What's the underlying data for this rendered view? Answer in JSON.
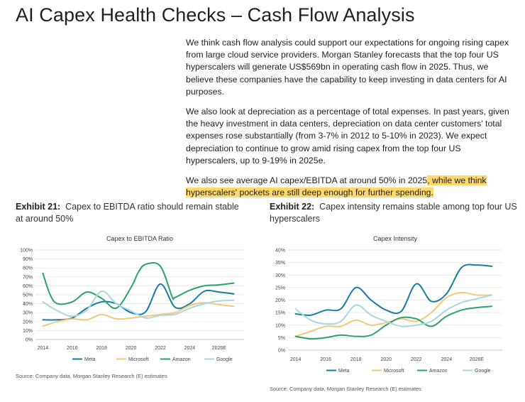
{
  "page": {
    "title": "AI Capex Health Checks – Cash Flow Analysis",
    "paragraphs": [
      "We think cash flow analysis could support our expectations for ongoing rising capex from large cloud service providers. Morgan Stanley forecasts that the top four US hyperscalers will generate US$569bn in operating cash flow in 2025. Thus, we believe these companies have the capability to keep investing in data centers for AI purposes.",
      "We also look at depreciation as a percentage of total expenses. In past years, given the heavy investment in data centers, depreciation on data center customers' total expenses rose substantially (from 3-7% in 2012 to 5-10% in 2023). We expect depreciation to continue to grow amid rising capex from the top four US hyperscalers, up to 9-19% in 2025e."
    ],
    "paragraph3_plain": "We also see average AI capex/EBITDA at around 50% in 2025",
    "paragraph3_highlight": ", while we think hyperscalers' pockets are still deep enough for further spending.",
    "highlight_color": "#fdd96b"
  },
  "exhibits": [
    {
      "label": "Exhibit 21:",
      "caption": "Capex to EBITDA ratio should remain stable at around 50%",
      "source": "Source: Company data, Morgan Stanley Research (E) estimates"
    },
    {
      "label": "Exhibit 22:",
      "caption": "Capex intensity remains stable among top four US hyperscalers",
      "source": "Source: Company data, Morgan Stanley Research (E) estimates"
    }
  ],
  "chart_data": [
    {
      "type": "line",
      "title": "Capex to EBITDA Ratio",
      "xlabel": "",
      "ylabel": "",
      "x_range": [
        2013.5,
        2027.7
      ],
      "x_ticks": [
        "2014",
        "2016",
        "2018",
        "2020",
        "2022",
        "2024",
        "2026E"
      ],
      "x_tick_values": [
        2014,
        2016,
        2018,
        2020,
        2022,
        2024,
        2026
      ],
      "ylim": [
        0,
        100
      ],
      "y_ticks": [
        "0%",
        "10%",
        "20%",
        "30%",
        "40%",
        "50%",
        "60%",
        "70%",
        "80%",
        "90%",
        "100%"
      ],
      "grid": true,
      "legend": "bottom",
      "series": [
        {
          "name": "Meta",
          "color": "#1a7ba4",
          "points": [
            [
              2014,
              22
            ],
            [
              2015,
              22
            ],
            [
              2016,
              24
            ],
            [
              2017,
              35
            ],
            [
              2018,
              42
            ],
            [
              2019,
              40
            ],
            [
              2020,
              30
            ],
            [
              2021,
              31
            ],
            [
              2022,
              62
            ],
            [
              2023,
              36
            ],
            [
              2024,
              40
            ],
            [
              2025,
              54
            ],
            [
              2026,
              53
            ],
            [
              2027,
              51
            ]
          ]
        },
        {
          "name": "Microsoft",
          "color": "#f2c777",
          "points": [
            [
              2014,
              15
            ],
            [
              2015,
              20
            ],
            [
              2016,
              23
            ],
            [
              2017,
              22
            ],
            [
              2018,
              28
            ],
            [
              2019,
              23
            ],
            [
              2020,
              24
            ],
            [
              2021,
              26
            ],
            [
              2022,
              28
            ],
            [
              2023,
              30
            ],
            [
              2024,
              38
            ],
            [
              2025,
              41
            ],
            [
              2026,
              39
            ],
            [
              2027,
              37
            ]
          ]
        },
        {
          "name": "Amazon",
          "color": "#2aa36a",
          "points": [
            [
              2014,
              74
            ],
            [
              2014.5,
              50
            ],
            [
              2015,
              40
            ],
            [
              2016,
              42
            ],
            [
              2017,
              53
            ],
            [
              2018,
              46
            ],
            [
              2019,
              35
            ],
            [
              2020,
              58
            ],
            [
              2020.5,
              75
            ],
            [
              2021,
              84
            ],
            [
              2022,
              82
            ],
            [
              2022.8,
              48
            ],
            [
              2023,
              47
            ],
            [
              2024,
              55
            ],
            [
              2025,
              60
            ],
            [
              2026,
              61
            ],
            [
              2027,
              63
            ]
          ]
        },
        {
          "name": "Google",
          "color": "#a9d6e0",
          "points": [
            [
              2014,
              42
            ],
            [
              2015,
              32
            ],
            [
              2016,
              26
            ],
            [
              2017,
              33
            ],
            [
              2018,
              54
            ],
            [
              2019,
              40
            ],
            [
              2020,
              32
            ],
            [
              2021,
              24
            ],
            [
              2022,
              27
            ],
            [
              2023,
              28
            ],
            [
              2024,
              35
            ],
            [
              2025,
              40
            ],
            [
              2026,
              43
            ],
            [
              2027,
              44
            ]
          ]
        }
      ]
    },
    {
      "type": "line",
      "title": "Capex Intensity",
      "xlabel": "",
      "ylabel": "",
      "x_range": [
        2013.5,
        2027.7
      ],
      "x_ticks": [
        "2014",
        "2016",
        "2018",
        "2020",
        "2022",
        "2024",
        "2026E"
      ],
      "x_tick_values": [
        2014,
        2016,
        2018,
        2020,
        2022,
        2024,
        2026
      ],
      "ylim": [
        0,
        40
      ],
      "y_ticks": [
        "0%",
        "5%",
        "10%",
        "15%",
        "20%",
        "25%",
        "30%",
        "35%",
        "40%"
      ],
      "grid": true,
      "legend": "bottom",
      "series": [
        {
          "name": "Meta",
          "color": "#1a7ba4",
          "points": [
            [
              2014,
              14.5
            ],
            [
              2015,
              14
            ],
            [
              2016,
              16
            ],
            [
              2017,
              16.5
            ],
            [
              2018,
              25
            ],
            [
              2019,
              20
            ],
            [
              2020,
              16
            ],
            [
              2021,
              15.5
            ],
            [
              2022,
              26.5
            ],
            [
              2023,
              19.5
            ],
            [
              2024,
              22.5
            ],
            [
              2025,
              33
            ],
            [
              2026,
              34
            ],
            [
              2027,
              33.5
            ]
          ]
        },
        {
          "name": "Microsoft",
          "color": "#f2c777",
          "points": [
            [
              2014,
              5.5
            ],
            [
              2015,
              7.5
            ],
            [
              2016,
              9.5
            ],
            [
              2017,
              9.5
            ],
            [
              2018,
              12
            ],
            [
              2019,
              10
            ],
            [
              2020,
              11
            ],
            [
              2021,
              12.5
            ],
            [
              2022,
              11.5
            ],
            [
              2023,
              15
            ],
            [
              2024,
              21
            ],
            [
              2025,
              23
            ],
            [
              2026,
              22
            ],
            [
              2027,
              22
            ]
          ]
        },
        {
          "name": "Amazon",
          "color": "#2aa36a",
          "points": [
            [
              2014,
              5.5
            ],
            [
              2015,
              4.5
            ],
            [
              2016,
              5
            ],
            [
              2017,
              6
            ],
            [
              2018,
              5.5
            ],
            [
              2019,
              6
            ],
            [
              2020,
              10
            ],
            [
              2021,
              13
            ],
            [
              2022,
              12.5
            ],
            [
              2023,
              9.5
            ],
            [
              2024,
              13.5
            ],
            [
              2025,
              16
            ],
            [
              2026,
              17
            ],
            [
              2027,
              17.5
            ]
          ]
        },
        {
          "name": "Google",
          "color": "#a9d6e0",
          "points": [
            [
              2014,
              16.5
            ],
            [
              2015,
              12
            ],
            [
              2016,
              10.5
            ],
            [
              2017,
              11.5
            ],
            [
              2018,
              18
            ],
            [
              2019,
              14
            ],
            [
              2020,
              11.5
            ],
            [
              2021,
              9.5
            ],
            [
              2022,
              10
            ],
            [
              2023,
              11.5
            ],
            [
              2024,
              16
            ],
            [
              2025,
              19
            ],
            [
              2026,
              20.5
            ],
            [
              2027,
              22
            ]
          ]
        }
      ]
    }
  ]
}
